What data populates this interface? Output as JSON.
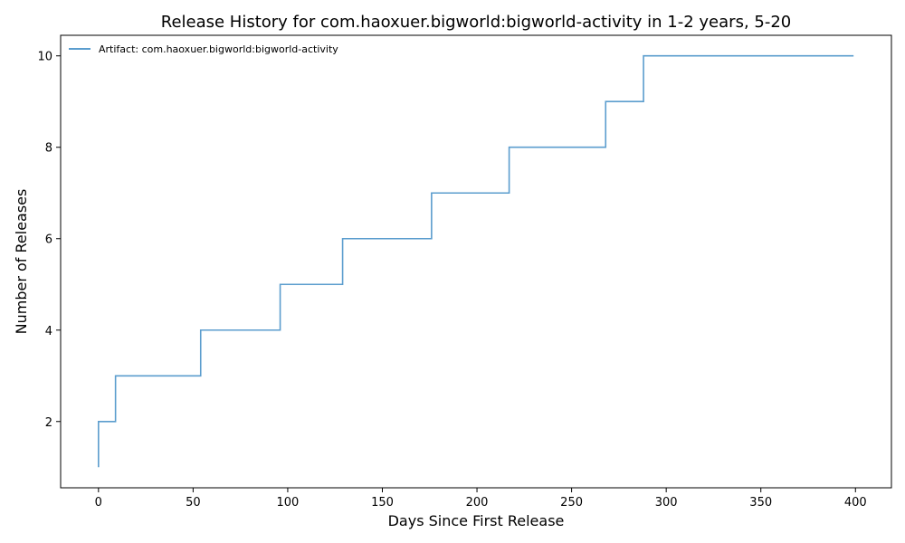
{
  "chart_data": {
    "type": "line",
    "title": "Release History for com.haoxuer.bigworld:bigworld-activity in 1-2 years, 5-20",
    "xlabel": "Days Since First Release",
    "ylabel": "Number of Releases",
    "xlim": [
      -20,
      419
    ],
    "ylim": [
      0.55,
      10.45
    ],
    "xticks": [
      0,
      50,
      100,
      150,
      200,
      250,
      300,
      350,
      400
    ],
    "yticks": [
      2,
      4,
      6,
      8,
      10
    ],
    "legend_position": "top-left",
    "grid": false,
    "series": [
      {
        "name": "Artifact: com.haoxuer.bigworld:bigworld-activity",
        "color": "#5b9dce",
        "step": "post",
        "x": [
          0,
          0,
          9,
          54,
          96,
          129,
          176,
          217,
          268,
          288,
          399
        ],
        "y": [
          1,
          2,
          3,
          4,
          5,
          6,
          7,
          8,
          9,
          10,
          10
        ]
      }
    ]
  }
}
